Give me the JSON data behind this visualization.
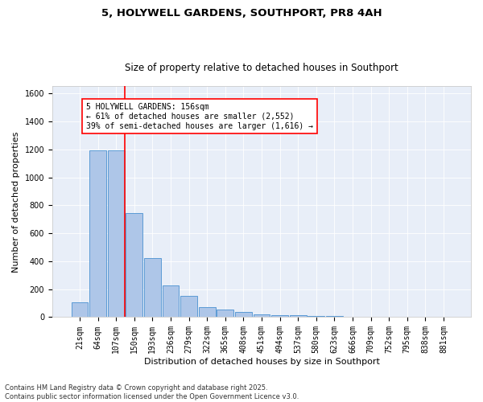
{
  "title": "5, HOLYWELL GARDENS, SOUTHPORT, PR8 4AH",
  "subtitle": "Size of property relative to detached houses in Southport",
  "xlabel": "Distribution of detached houses by size in Southport",
  "ylabel": "Number of detached properties",
  "categories": [
    "21sqm",
    "64sqm",
    "107sqm",
    "150sqm",
    "193sqm",
    "236sqm",
    "279sqm",
    "322sqm",
    "365sqm",
    "408sqm",
    "451sqm",
    "494sqm",
    "537sqm",
    "580sqm",
    "623sqm",
    "666sqm",
    "709sqm",
    "752sqm",
    "795sqm",
    "838sqm",
    "881sqm"
  ],
  "values": [
    105,
    1195,
    1195,
    745,
    420,
    225,
    150,
    70,
    55,
    35,
    20,
    15,
    12,
    10,
    8,
    3,
    2,
    0,
    0,
    0,
    5
  ],
  "bar_color": "#aec6e8",
  "bar_edge_color": "#5b9bd5",
  "vline_color": "red",
  "annotation_text": "5 HOLYWELL GARDENS: 156sqm\n← 61% of detached houses are smaller (2,552)\n39% of semi-detached houses are larger (1,616) →",
  "ylim": [
    0,
    1650
  ],
  "yticks": [
    0,
    200,
    400,
    600,
    800,
    1000,
    1200,
    1400,
    1600
  ],
  "background_color": "#e8eef8",
  "footer": "Contains HM Land Registry data © Crown copyright and database right 2025.\nContains public sector information licensed under the Open Government Licence v3.0.",
  "title_fontsize": 9.5,
  "subtitle_fontsize": 8.5,
  "xlabel_fontsize": 8,
  "ylabel_fontsize": 8,
  "tick_fontsize": 7,
  "ann_fontsize": 7,
  "footer_fontsize": 6
}
